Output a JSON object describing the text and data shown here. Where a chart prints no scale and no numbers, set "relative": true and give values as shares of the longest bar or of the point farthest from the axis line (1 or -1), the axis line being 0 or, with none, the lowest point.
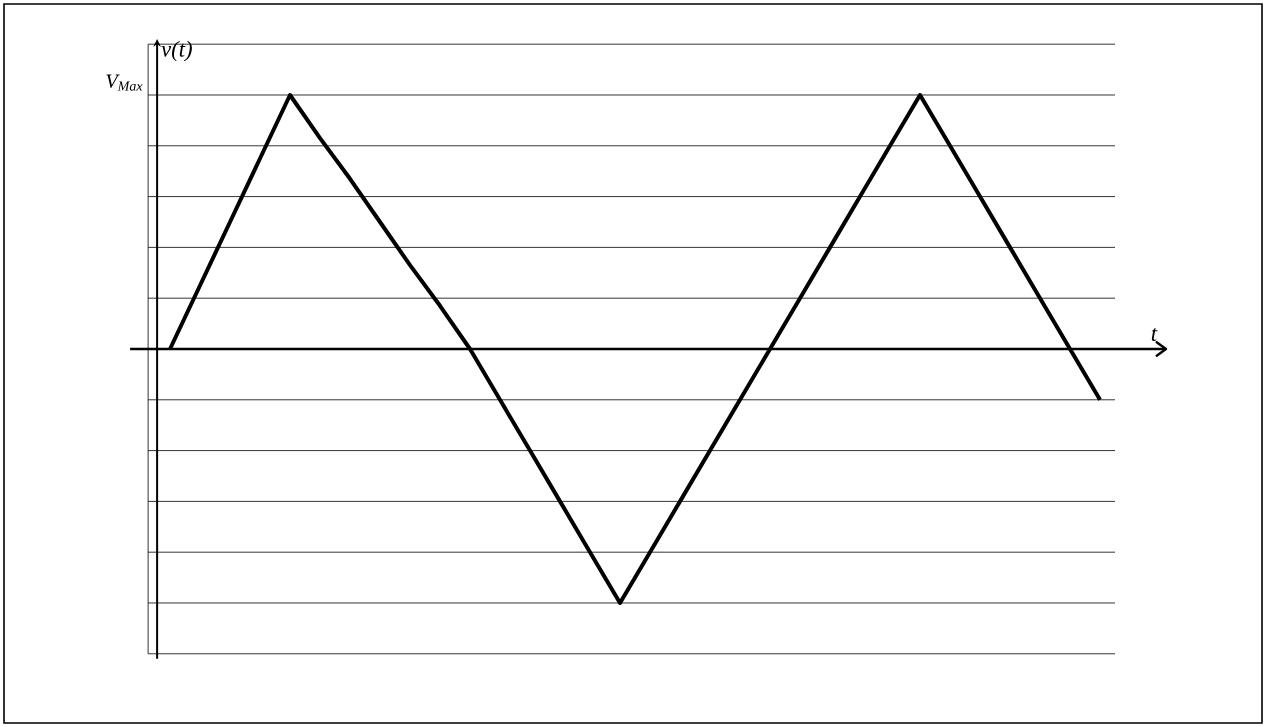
{
  "chart_data": {
    "type": "line",
    "relative": true,
    "xlabel": "t",
    "ylabel": "v(t)",
    "annotations": [
      "V$_{Max}$"
    ],
    "categories": [
      null,
      null,
      null,
      null,
      null,
      null,
      null,
      null,
      null,
      null,
      null,
      null,
      null,
      null,
      null,
      null,
      null,
      null,
      null,
      null,
      null,
      null,
      null,
      null,
      null,
      null,
      null,
      null,
      null,
      null,
      null,
      null
    ],
    "values": [
      0,
      0.25,
      0.5,
      0.75,
      1,
      0.83,
      0.67,
      0.5,
      0.33,
      0.17,
      0,
      -0.2,
      -0.4,
      -0.6,
      -0.8,
      -1,
      -0.8,
      -0.6,
      -0.4,
      -0.2,
      0,
      0.2,
      0.4,
      0.6,
      0.8,
      1,
      0.8,
      0.6,
      0.4,
      0.2,
      0,
      -0.2
    ],
    "color": "#000000",
    "grid": "y",
    "marker": "none",
    "line_style": "solid"
  }
}
